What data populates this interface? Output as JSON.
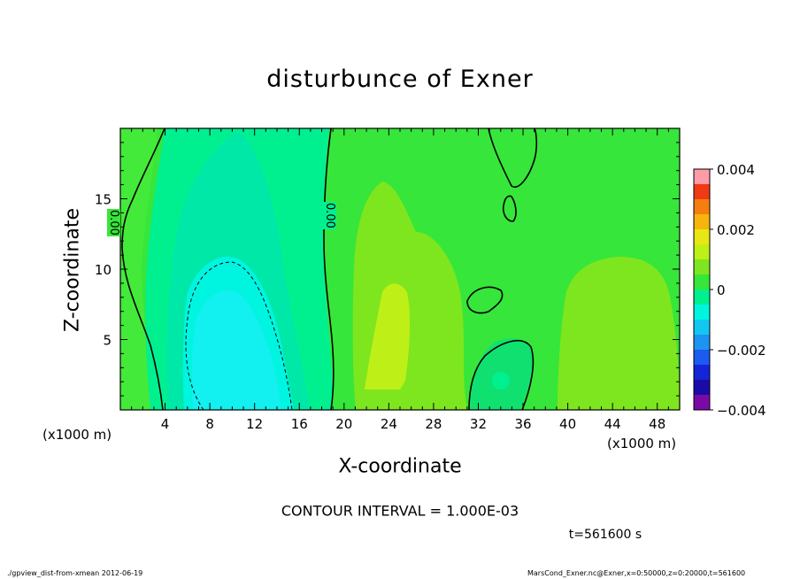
{
  "chart_data": {
    "type": "heatmap",
    "title": "disturbunce of Exner",
    "xlabel": "X-coordinate",
    "ylabel": "Z-coordinate",
    "x_unit_left": "(x1000 m)",
    "x_unit_right": "(x1000 m)",
    "xlim": [
      0,
      50
    ],
    "ylim": [
      0,
      20
    ],
    "xticks": [
      4,
      8,
      12,
      16,
      20,
      24,
      28,
      32,
      36,
      40,
      44,
      48
    ],
    "yticks": [
      5,
      10,
      15
    ],
    "contour_label": "0.00",
    "colorbar": {
      "range": [
        -0.004,
        0.004
      ],
      "tick_values": [
        0.004,
        0.002,
        0,
        -0.002,
        -0.004
      ],
      "tick_labels": [
        "0.004",
        "0.002",
        "0",
        "−0.002",
        "−0.004"
      ],
      "levels": [
        {
          "from": -0.004,
          "to": -0.0035,
          "color": "#7a0aa6"
        },
        {
          "from": -0.0035,
          "to": -0.003,
          "color": "#1a0aa8"
        },
        {
          "from": -0.003,
          "to": -0.0025,
          "color": "#1424d6"
        },
        {
          "from": -0.0025,
          "to": -0.002,
          "color": "#1c5af0"
        },
        {
          "from": -0.002,
          "to": -0.0015,
          "color": "#1c94f0"
        },
        {
          "from": -0.0015,
          "to": -0.001,
          "color": "#12c8f0"
        },
        {
          "from": -0.001,
          "to": -0.0005,
          "color": "#00f5e0"
        },
        {
          "from": -0.0005,
          "to": 0,
          "color": "#00f090"
        },
        {
          "from": 0,
          "to": 0.0005,
          "color": "#36e63a"
        },
        {
          "from": 0.0005,
          "to": 0.001,
          "color": "#7ee61e"
        },
        {
          "from": 0.001,
          "to": 0.0015,
          "color": "#bef018"
        },
        {
          "from": 0.0015,
          "to": 0.002,
          "color": "#e8e614"
        },
        {
          "from": 0.002,
          "to": 0.0025,
          "color": "#f7b40c"
        },
        {
          "from": 0.0025,
          "to": 0.003,
          "color": "#f57f0e"
        },
        {
          "from": 0.003,
          "to": 0.0035,
          "color": "#f03a14"
        },
        {
          "from": 0.0035,
          "to": 0.004,
          "color": "#ff9ca8"
        }
      ]
    }
  },
  "contour_interval": "CONTOUR INTERVAL = 1.000E-03",
  "time_label": "t=561600  s",
  "footer_left": "./gpview_dist-from-xmean  2012-06-19",
  "footer_right": "MarsCond_Exner.nc@Exner,x=0:50000,z=0:20000,t=561600"
}
